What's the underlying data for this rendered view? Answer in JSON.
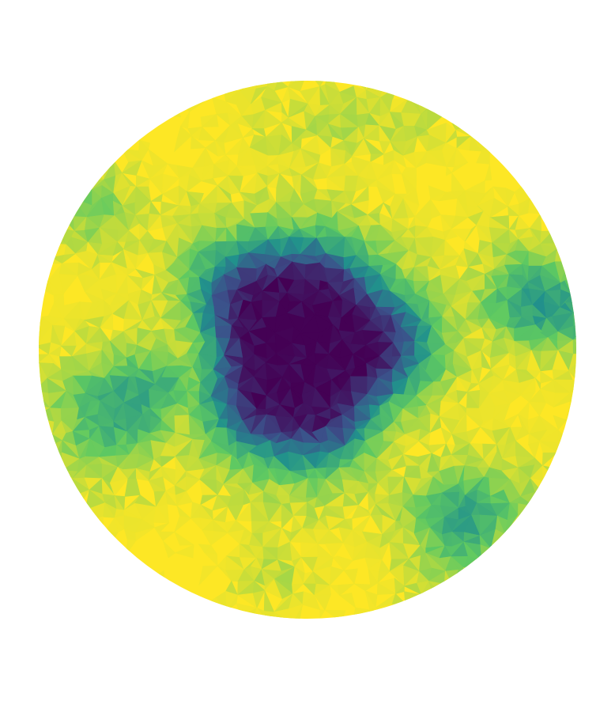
{
  "figure": {
    "kind": "triangulated-mesh-field",
    "colormap": "viridis",
    "palette": {
      "background": "#ffffff",
      "domain_fill": "#fde725",
      "low": "#440154",
      "mid_low": "#3b528b",
      "mid": "#21918c",
      "mid_high": "#5ec962",
      "high": "#fde725"
    },
    "features": [
      {
        "name": "central-low-region",
        "level": 0.0
      },
      {
        "name": "right-edge-patch",
        "level": 0.55
      },
      {
        "name": "left-patch",
        "level": 0.6
      },
      {
        "name": "lower-right-patch",
        "level": 0.6
      },
      {
        "name": "upper-left-patch",
        "level": 0.8
      },
      {
        "name": "top-patch",
        "level": 0.9
      },
      {
        "name": "bottom-patch",
        "level": 0.9
      }
    ]
  }
}
